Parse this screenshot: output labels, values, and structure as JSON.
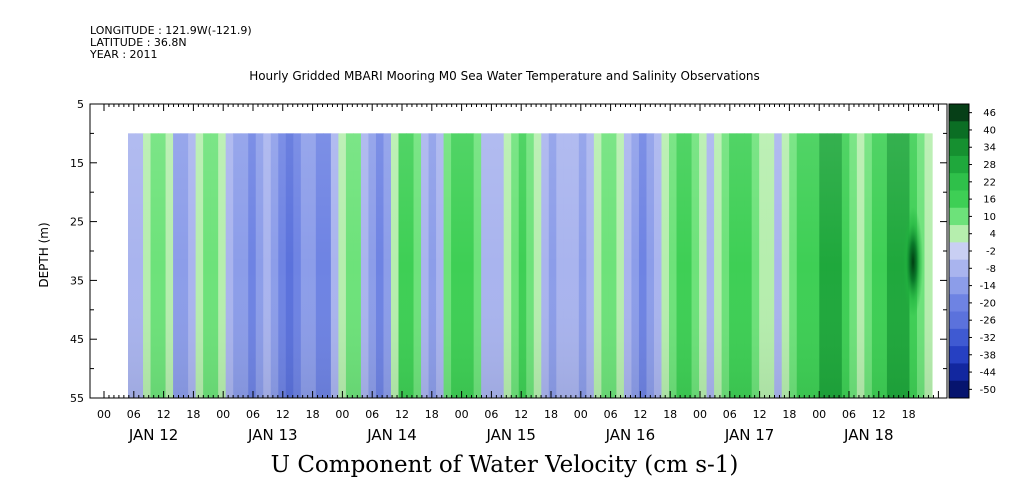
{
  "header": {
    "longitude": "LONGITUDE : 121.9W(-121.9)",
    "latitude": "LATITUDE : 36.8N",
    "year": "YEAR : 2011"
  },
  "chart_data": {
    "type": "heatmap",
    "title": "Hourly Gridded MBARI Mooring M0 Sea Water Temperature and Salinity Observations",
    "xlabel": "U Component of Water Velocity (cm s-1)",
    "ylabel": "DEPTH (m)",
    "y_ticks": [
      5,
      15,
      25,
      35,
      45,
      55
    ],
    "y_range": [
      5,
      55
    ],
    "y_inverted": true,
    "x_hour_ticks": [
      "00",
      "06",
      "12",
      "18",
      "00",
      "06",
      "12",
      "18",
      "00",
      "06",
      "12",
      "18",
      "00",
      "06",
      "12",
      "18",
      "00",
      "06",
      "12",
      "18",
      "00",
      "06",
      "12",
      "18",
      "00",
      "06",
      "12",
      "18"
    ],
    "x_day_labels": [
      "JAN 12",
      "JAN 13",
      "JAN 14",
      "JAN 15",
      "JAN 16",
      "JAN 17",
      "JAN 18"
    ],
    "data_depth_range": [
      10,
      55
    ],
    "data_time_start": "JAN 12 05:00",
    "colorbar": {
      "levels": [
        "46",
        "40",
        "34",
        "28",
        "22",
        "16",
        "10",
        "4",
        "-2",
        "-8",
        "-14",
        "-20",
        "-26",
        "-32",
        "-38",
        "-44",
        "-50"
      ]
    },
    "column_values_u": [
      -8,
      -4,
      2,
      6,
      4,
      -2,
      -10,
      -14,
      -8,
      2,
      8,
      6,
      -2,
      -6,
      -10,
      -14,
      -18,
      -10,
      -6,
      -12,
      -20,
      -22,
      -16,
      -10,
      -14,
      -20,
      -16,
      -6,
      2,
      8,
      4,
      -6,
      -14,
      -18,
      -10,
      2,
      10,
      14,
      6,
      -4,
      -10,
      -4,
      6,
      12,
      16,
      10,
      4,
      -4,
      -8,
      -4,
      2,
      8,
      12,
      8,
      2,
      -6,
      -10,
      -8,
      -4,
      -8,
      -12,
      -6,
      2,
      8,
      4,
      -2,
      -8,
      -14,
      -18,
      -12,
      -4,
      2,
      8,
      12,
      10,
      4,
      -2,
      -4,
      2,
      8,
      12,
      16,
      14,
      8,
      2,
      -2,
      -6,
      -2,
      4,
      10,
      16,
      20,
      24,
      30,
      22,
      12,
      4,
      -2,
      4,
      10,
      16,
      22,
      28,
      30,
      18,
      8,
      2
    ],
    "strong_positive_core": {
      "label": "JAN 18 ~19h",
      "depth_range": [
        20,
        40
      ],
      "u_max": 46
    }
  }
}
